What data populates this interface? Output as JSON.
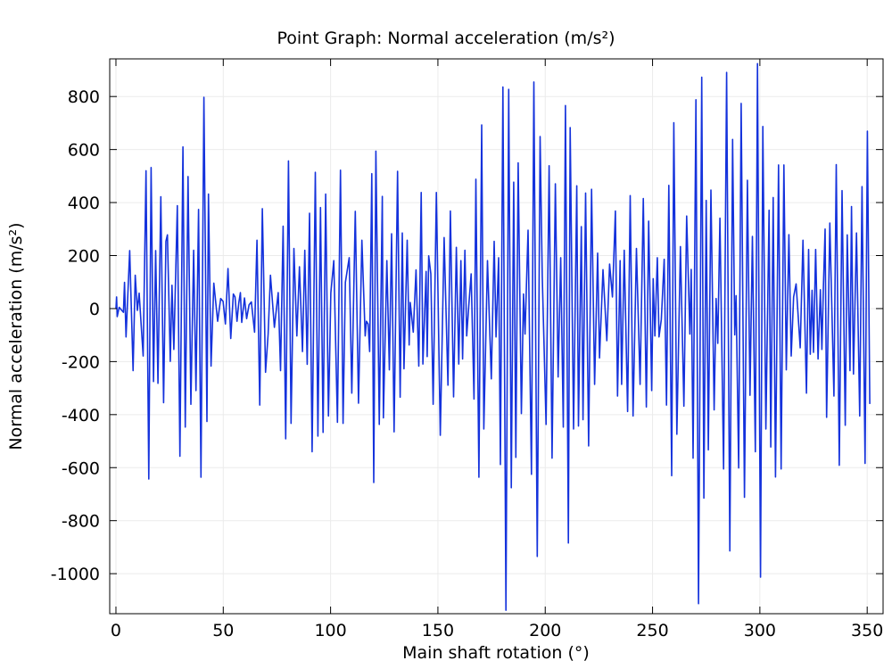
{
  "chart_data": {
    "type": "line",
    "title": "Point Graph: Normal acceleration (m/s²)",
    "xlabel": "Main shaft rotation (°)",
    "ylabel": "Normal acceleration (m/s²)",
    "xlim": [
      -2.9,
      357.4
    ],
    "ylim": [
      -1151,
      942
    ],
    "xticks": [
      0,
      50,
      100,
      150,
      200,
      250,
      300,
      350
    ],
    "yticks": [
      -1000,
      -800,
      -600,
      -400,
      -200,
      0,
      200,
      400,
      600,
      800
    ],
    "grid": true,
    "color": "#1432dc",
    "series": [
      {
        "points": [
          [
            0,
            0
          ],
          [
            0.3,
            44
          ],
          [
            0.6,
            -30
          ],
          [
            1.5,
            5
          ],
          [
            3.5,
            -14
          ],
          [
            4,
            99
          ],
          [
            4.7,
            -107
          ],
          [
            6.4,
            219
          ],
          [
            8,
            -234
          ],
          [
            9,
            126
          ],
          [
            10,
            -7
          ],
          [
            10.8,
            58
          ],
          [
            12.7,
            -179
          ],
          [
            14,
            520
          ],
          [
            15.3,
            -643
          ],
          [
            16.4,
            532
          ],
          [
            17.5,
            -275
          ],
          [
            18.5,
            219
          ],
          [
            19.6,
            -282
          ],
          [
            20.9,
            422
          ],
          [
            22.2,
            -355
          ],
          [
            23.3,
            254
          ],
          [
            24,
            278
          ],
          [
            25.3,
            -199
          ],
          [
            26.1,
            88
          ],
          [
            27,
            -154
          ],
          [
            28.6,
            388
          ],
          [
            29.8,
            -557
          ],
          [
            31.2,
            610
          ],
          [
            32.3,
            -447
          ],
          [
            33.6,
            498
          ],
          [
            34.9,
            -361
          ],
          [
            36.2,
            220
          ],
          [
            37.3,
            -309
          ],
          [
            38.5,
            374
          ],
          [
            39.6,
            -636
          ],
          [
            41,
            797
          ],
          [
            42.4,
            -426
          ],
          [
            43.1,
            432
          ],
          [
            44.3,
            -217
          ],
          [
            45.6,
            96
          ],
          [
            47.4,
            -48
          ],
          [
            48.8,
            38
          ],
          [
            49.9,
            27
          ],
          [
            51,
            -58
          ],
          [
            52.2,
            151
          ],
          [
            53.5,
            -113
          ],
          [
            54.7,
            55
          ],
          [
            55.5,
            44
          ],
          [
            56.4,
            -48
          ],
          [
            57.2,
            19
          ],
          [
            58,
            60
          ],
          [
            58.6,
            -52
          ],
          [
            59.9,
            40
          ],
          [
            60.9,
            -38
          ],
          [
            62,
            14
          ],
          [
            63.1,
            25
          ],
          [
            64.6,
            -89
          ],
          [
            65.7,
            258
          ],
          [
            67,
            -364
          ],
          [
            68.2,
            377
          ],
          [
            69.7,
            -240
          ],
          [
            70.9,
            -96
          ],
          [
            72,
            126
          ],
          [
            73.8,
            -71
          ],
          [
            75.6,
            60
          ],
          [
            76.7,
            -234
          ],
          [
            77.9,
            311
          ],
          [
            79.1,
            -491
          ],
          [
            80.4,
            557
          ],
          [
            81.6,
            -433
          ],
          [
            82.9,
            227
          ],
          [
            84.3,
            -103
          ],
          [
            85.5,
            158
          ],
          [
            86.9,
            -162
          ],
          [
            88,
            220
          ],
          [
            89.1,
            -210
          ],
          [
            90.2,
            360
          ],
          [
            91.4,
            -540
          ],
          [
            92.9,
            514
          ],
          [
            94.1,
            -481
          ],
          [
            95.3,
            381
          ],
          [
            96.5,
            -467
          ],
          [
            97.7,
            432
          ],
          [
            99,
            -405
          ],
          [
            100.1,
            59
          ],
          [
            101.5,
            181
          ],
          [
            103.2,
            -429
          ],
          [
            104.6,
            522
          ],
          [
            105.8,
            -433
          ],
          [
            106.9,
            99
          ],
          [
            108.7,
            192
          ],
          [
            109.9,
            -319
          ],
          [
            111.5,
            367
          ],
          [
            113,
            -357
          ],
          [
            114.6,
            258
          ],
          [
            116.1,
            -103
          ],
          [
            116.7,
            -48
          ],
          [
            117.5,
            -58
          ],
          [
            118.2,
            -162
          ],
          [
            119.2,
            509
          ],
          [
            120.1,
            -656
          ],
          [
            121.1,
            594
          ],
          [
            122.7,
            -437
          ],
          [
            124.1,
            423
          ],
          [
            124.6,
            -412
          ],
          [
            126.2,
            181
          ],
          [
            127.4,
            -231
          ],
          [
            128.4,
            282
          ],
          [
            129.6,
            -465
          ],
          [
            131.2,
            518
          ],
          [
            132.4,
            -334
          ],
          [
            133.4,
            285
          ],
          [
            134.2,
            -227
          ],
          [
            135.7,
            258
          ],
          [
            136.6,
            -137
          ],
          [
            137.1,
            23
          ],
          [
            138.5,
            -89
          ],
          [
            139.8,
            146
          ],
          [
            141.1,
            -217
          ],
          [
            142.2,
            438
          ],
          [
            143,
            -209
          ],
          [
            144.5,
            140
          ],
          [
            145,
            -181
          ],
          [
            145.7,
            199
          ],
          [
            146.7,
            131
          ],
          [
            147.8,
            -361
          ],
          [
            149.3,
            438
          ],
          [
            151.1,
            -478
          ],
          [
            152.9,
            268
          ],
          [
            154.7,
            -289
          ],
          [
            155.8,
            368
          ],
          [
            157.3,
            -333
          ],
          [
            158.6,
            231
          ],
          [
            159.7,
            -209
          ],
          [
            160.7,
            181
          ],
          [
            161.5,
            -190
          ],
          [
            162.6,
            220
          ],
          [
            163.4,
            -103
          ],
          [
            164.4,
            14
          ],
          [
            165.5,
            131
          ],
          [
            166.8,
            -341
          ],
          [
            167.7,
            488
          ],
          [
            169.1,
            -636
          ],
          [
            170.4,
            693
          ],
          [
            171.4,
            -454
          ],
          [
            173.1,
            181
          ],
          [
            174.9,
            -265
          ],
          [
            176.2,
            254
          ],
          [
            177.1,
            -107
          ],
          [
            178.3,
            192
          ],
          [
            179.1,
            -588
          ],
          [
            180.3,
            836
          ],
          [
            181.7,
            -1138
          ],
          [
            183,
            827
          ],
          [
            184.2,
            -676
          ],
          [
            185.3,
            477
          ],
          [
            186.3,
            -561
          ],
          [
            187.4,
            550
          ],
          [
            188.9,
            -396
          ],
          [
            189.9,
            55
          ],
          [
            190.6,
            -96
          ],
          [
            192,
            296
          ],
          [
            193.6,
            -625
          ],
          [
            194.7,
            855
          ],
          [
            196.3,
            -935
          ],
          [
            197.6,
            649
          ],
          [
            198.6,
            124
          ],
          [
            200.4,
            -437
          ],
          [
            201.8,
            539
          ],
          [
            203.2,
            -564
          ],
          [
            204.7,
            471
          ],
          [
            206,
            -258
          ],
          [
            207.2,
            192
          ],
          [
            208.4,
            -447
          ],
          [
            209.4,
            766
          ],
          [
            210.8,
            -884
          ],
          [
            211.6,
            683
          ],
          [
            213.2,
            -454
          ],
          [
            214.7,
            463
          ],
          [
            215.5,
            -443
          ],
          [
            216.8,
            309
          ],
          [
            217.6,
            -419
          ],
          [
            218.8,
            436
          ],
          [
            220.2,
            -518
          ],
          [
            221.6,
            450
          ],
          [
            223,
            -286
          ],
          [
            224.4,
            209
          ],
          [
            225.3,
            -186
          ],
          [
            226.9,
            147
          ],
          [
            228.7,
            -121
          ],
          [
            230,
            168
          ],
          [
            231.3,
            44
          ],
          [
            232.7,
            368
          ],
          [
            233.7,
            -330
          ],
          [
            234.9,
            181
          ],
          [
            235.6,
            -286
          ],
          [
            236.8,
            220
          ],
          [
            238.4,
            -388
          ],
          [
            239.6,
            426
          ],
          [
            240.9,
            -405
          ],
          [
            242.5,
            227
          ],
          [
            244.2,
            -286
          ],
          [
            245.7,
            415
          ],
          [
            247.1,
            -371
          ],
          [
            248.2,
            330
          ],
          [
            249.6,
            -309
          ],
          [
            250.3,
            113
          ],
          [
            251.1,
            -103
          ],
          [
            252.2,
            192
          ],
          [
            253,
            -107
          ],
          [
            254.1,
            -41
          ],
          [
            255.4,
            186
          ],
          [
            256.5,
            -364
          ],
          [
            257.6,
            465
          ],
          [
            258.9,
            -630
          ],
          [
            259.9,
            701
          ],
          [
            261.3,
            -474
          ],
          [
            263,
            234
          ],
          [
            264.6,
            -368
          ],
          [
            265.9,
            349
          ],
          [
            267.4,
            -96
          ],
          [
            268,
            148
          ],
          [
            268.9,
            -564
          ],
          [
            270.2,
            788
          ],
          [
            271.4,
            -1113
          ],
          [
            272.9,
            873
          ],
          [
            273.9,
            -715
          ],
          [
            275,
            408
          ],
          [
            276,
            -533
          ],
          [
            277.2,
            447
          ],
          [
            278.7,
            -382
          ],
          [
            279.6,
            38
          ],
          [
            280.4,
            -131
          ],
          [
            281.4,
            341
          ],
          [
            283.1,
            -605
          ],
          [
            284.5,
            891
          ],
          [
            286,
            -914
          ],
          [
            287.3,
            638
          ],
          [
            288.3,
            -99
          ],
          [
            288.9,
            49
          ],
          [
            290.1,
            -601
          ],
          [
            291.3,
            774
          ],
          [
            292.8,
            -712
          ],
          [
            294.2,
            484
          ],
          [
            295.4,
            -327
          ],
          [
            296.5,
            272
          ],
          [
            297.9,
            -540
          ],
          [
            298.9,
            924
          ],
          [
            300.3,
            -1013
          ],
          [
            301.4,
            687
          ],
          [
            302.8,
            -454
          ],
          [
            304.3,
            371
          ],
          [
            305.1,
            -522
          ],
          [
            306.2,
            419
          ],
          [
            307.3,
            -635
          ],
          [
            308.7,
            542
          ],
          [
            309.9,
            -605
          ],
          [
            311.2,
            542
          ],
          [
            312.3,
            -231
          ],
          [
            313.5,
            279
          ],
          [
            314.6,
            -179
          ],
          [
            315.7,
            44
          ],
          [
            316.9,
            93
          ],
          [
            318.8,
            -148
          ],
          [
            320.1,
            258
          ],
          [
            321.7,
            -319
          ],
          [
            322.7,
            223
          ],
          [
            323.5,
            -172
          ],
          [
            324.3,
            69
          ],
          [
            325,
            -165
          ],
          [
            326,
            223
          ],
          [
            327.1,
            -190
          ],
          [
            328.2,
            71
          ],
          [
            328.9,
            -154
          ],
          [
            329.6,
            82
          ],
          [
            330.4,
            300
          ],
          [
            331.1,
            -410
          ],
          [
            332.6,
            323
          ],
          [
            334.5,
            -330
          ],
          [
            335.6,
            543
          ],
          [
            337,
            -591
          ],
          [
            338.3,
            445
          ],
          [
            339.8,
            -440
          ],
          [
            340.7,
            278
          ],
          [
            342,
            -234
          ],
          [
            342.7,
            385
          ],
          [
            343.6,
            -247
          ],
          [
            345,
            285
          ],
          [
            346.5,
            -405
          ],
          [
            347.6,
            460
          ],
          [
            349,
            -584
          ],
          [
            350.1,
            669
          ],
          [
            351.2,
            -360
          ]
        ]
      }
    ]
  }
}
